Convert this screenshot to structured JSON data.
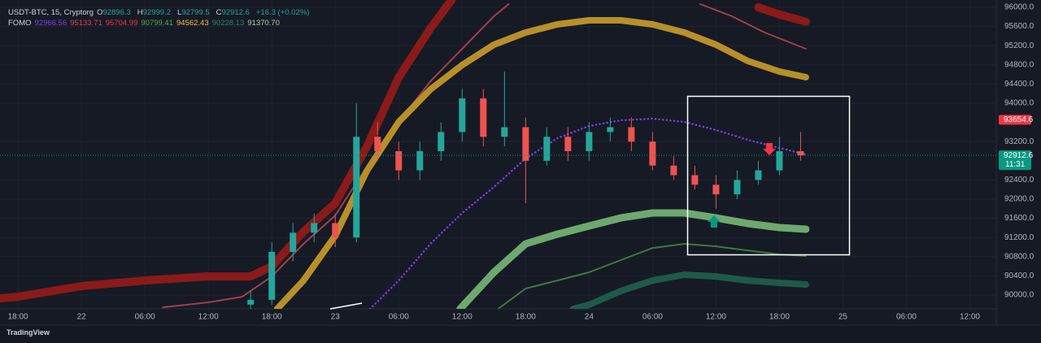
{
  "chart_data": {
    "type": "candlestick",
    "xlim": [
      -1.7,
      92.5
    ],
    "ylim": [
      89712,
      96152
    ],
    "xticks": [
      {
        "value": 0,
        "label": "18:00"
      },
      {
        "value": 6,
        "label": "22"
      },
      {
        "value": 12,
        "label": "06:00"
      },
      {
        "value": 18,
        "label": "12:00"
      },
      {
        "value": 24,
        "label": "18:00"
      },
      {
        "value": 30,
        "label": "23"
      },
      {
        "value": 36,
        "label": "06:00"
      },
      {
        "value": 42,
        "label": "12:00"
      },
      {
        "value": 48,
        "label": "18:00"
      },
      {
        "value": 54,
        "label": "24"
      },
      {
        "value": 60,
        "label": "06:00"
      },
      {
        "value": 66,
        "label": "12:00"
      },
      {
        "value": 72,
        "label": "18:00"
      },
      {
        "value": 78,
        "label": "25"
      },
      {
        "value": 84,
        "label": "06:00"
      },
      {
        "value": 90,
        "label": "12:00"
      }
    ],
    "yticks": [
      {
        "value": 96000,
        "label": "96000.0"
      },
      {
        "value": 95600,
        "label": "95600.0"
      },
      {
        "value": 95200,
        "label": "95200.0"
      },
      {
        "value": 94800,
        "label": "94800.0"
      },
      {
        "value": 94400,
        "label": "94400.0"
      },
      {
        "value": 94000,
        "label": "94000.0"
      },
      {
        "value": 93200,
        "label": "93200.0"
      },
      {
        "value": 92400,
        "label": "92400.0"
      },
      {
        "value": 92000,
        "label": "92000.0"
      },
      {
        "value": 91600,
        "label": "91600.0"
      },
      {
        "value": 91200,
        "label": "91200.0"
      },
      {
        "value": 90800,
        "label": "90800.0"
      },
      {
        "value": 90400,
        "label": "90400.0"
      },
      {
        "value": 90000,
        "label": "90000.0"
      }
    ],
    "grid": true,
    "up_color": "#26a69a",
    "down_color": "#ef5350",
    "x": [
      22,
      24,
      26,
      28,
      30,
      32,
      34,
      36,
      38,
      40,
      42,
      44,
      46,
      48,
      50,
      52,
      54,
      56,
      58,
      60,
      62,
      64,
      66,
      68,
      70,
      72,
      74
    ],
    "open": [
      89800,
      89900,
      90900,
      91300,
      91500,
      91200,
      93300,
      93000,
      92600,
      93000,
      93400,
      94100,
      93300,
      93500,
      92800,
      93300,
      93000,
      93400,
      93500,
      93200,
      92700,
      92500,
      92300,
      92100,
      92400,
      92600,
      93000
    ],
    "high": [
      90100,
      91100,
      91500,
      91700,
      91700,
      94000,
      93600,
      93200,
      93200,
      93600,
      94300,
      94300,
      94660,
      93700,
      93500,
      93500,
      93600,
      93700,
      93700,
      93400,
      92900,
      92700,
      92500,
      92600,
      92800,
      93300,
      93400
    ],
    "low": [
      89712,
      89800,
      90700,
      91100,
      91000,
      91100,
      92800,
      92400,
      92400,
      92800,
      93200,
      93100,
      93100,
      91915,
      92700,
      92800,
      92800,
      93200,
      93000,
      92600,
      92400,
      92200,
      91800,
      92000,
      92300,
      92500,
      92800
    ],
    "close": [
      89900,
      90900,
      91300,
      91500,
      91200,
      93300,
      93000,
      92600,
      93000,
      93400,
      94100,
      93300,
      93500,
      92800,
      93300,
      93000,
      93400,
      93500,
      93200,
      92700,
      92500,
      92300,
      92100,
      92400,
      92600,
      93000,
      92912.6
    ],
    "series": [
      {
        "color": "#8b1a1a",
        "width": 10,
        "x": [
          -1.7,
          0,
          6,
          12,
          18,
          22,
          24,
          27,
          30,
          33,
          36,
          39,
          41,
          55,
          70,
          72,
          74.5
        ],
        "values": [
          89930,
          89965,
          90186,
          90304,
          90389,
          90389,
          90600,
          91321,
          91914,
          93100,
          94542,
          95560,
          96152,
          null,
          96000,
          95850,
          95700
        ]
      },
      {
        "color": "#a0404a",
        "width": 2,
        "x": [
          13.7,
          18,
          21.2,
          24,
          27,
          30,
          33,
          36,
          39,
          42,
          45,
          46.4,
          55,
          64.5,
          67.5,
          70.6,
          74.5
        ],
        "values": [
          89745,
          89847,
          89965,
          90389,
          91067,
          91660,
          92677,
          93610,
          94457,
          95135,
          95813,
          96067,
          null,
          96067,
          95813,
          95474,
          95135
        ]
      },
      {
        "color": "#b8902a",
        "width": 8,
        "x": [
          24.5,
          27,
          30,
          33,
          36,
          39,
          42,
          45,
          48,
          51,
          54,
          57,
          60,
          63,
          66,
          69,
          72,
          74.5
        ],
        "values": [
          89711,
          90304,
          91237,
          92593,
          93610,
          94287,
          94796,
          95220,
          95474,
          95644,
          95728,
          95728,
          95644,
          95474,
          95220,
          94881,
          94660,
          94542
        ]
      },
      {
        "color": "#7b3fe4",
        "width": 2.5,
        "dotted": true,
        "x": [
          33.3,
          36,
          39,
          42,
          45,
          48,
          51,
          54,
          57,
          60,
          63,
          66,
          69,
          72,
          74.5
        ],
        "values": [
          89712,
          90304,
          91067,
          91711,
          92253,
          92847,
          93271,
          93525,
          93644,
          93677,
          93610,
          93440,
          93237,
          93067,
          92931
        ]
      },
      {
        "color": "#6ea86e",
        "width": 9,
        "x": [
          41.8,
          45,
          48,
          51,
          54,
          57,
          60,
          63,
          66,
          69,
          72,
          74.5
        ],
        "values": [
          89712,
          90474,
          91067,
          91270,
          91440,
          91609,
          91711,
          91711,
          91609,
          91491,
          91406,
          91372
        ]
      },
      {
        "color": "#3d7a3d",
        "width": 2,
        "x": [
          45.4,
          48,
          51,
          54,
          57,
          60,
          63,
          66,
          69,
          72,
          74.5
        ],
        "values": [
          89712,
          90135,
          90304,
          90474,
          90728,
          90982,
          91067,
          91016,
          90931,
          90847,
          90813
        ]
      },
      {
        "color": "#1e5a4a",
        "width": 8,
        "x": [
          52.5,
          54,
          57,
          60,
          63,
          66,
          69,
          72,
          74.5
        ],
        "values": [
          89712,
          89796,
          90084,
          90304,
          90423,
          90389,
          90304,
          90254,
          90220
        ]
      }
    ],
    "price_tags": [
      {
        "value": 93654.6,
        "color": "#f23645"
      },
      {
        "value": 92912.6,
        "color": "#089981",
        "countdown": "11:31"
      }
    ]
  },
  "legend": {
    "symbol": "USDT-BTC, 15, Cryptorg",
    "ohlc": [
      {
        "label": "O",
        "value": "92896.3"
      },
      {
        "label": "H",
        "value": "92999.2"
      },
      {
        "label": "L",
        "value": "92799.5"
      },
      {
        "label": "C",
        "value": "92912.6"
      }
    ],
    "change": "+16.3 (+0.02%)",
    "indicator": "FOMO",
    "indicator_values": [
      {
        "text": "92966.56",
        "color": "#7b3fe4"
      },
      {
        "text": "95133.71",
        "color": "#e04050"
      },
      {
        "text": "95704.99",
        "color": "#f23645"
      },
      {
        "text": "90799.41",
        "color": "#4caf50"
      },
      {
        "text": "94562.43",
        "color": "#f0c040"
      },
      {
        "text": "90228.13",
        "color": "#1e8a6a"
      },
      {
        "text": "91370.70",
        "color": "#a5d6a7"
      }
    ]
  },
  "brand": "TradingView"
}
